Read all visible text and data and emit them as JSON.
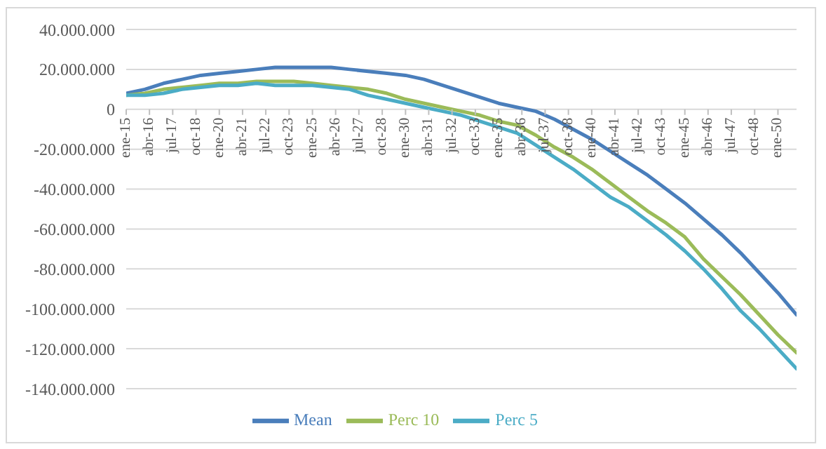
{
  "chart_data": {
    "type": "line",
    "x": [
      "2015-01",
      "2016-01",
      "2017-01",
      "2018-01",
      "2019-01",
      "2020-01",
      "2021-01",
      "2022-01",
      "2023-01",
      "2024-01",
      "2025-01",
      "2026-01",
      "2027-01",
      "2028-01",
      "2029-01",
      "2030-01",
      "2031-01",
      "2032-01",
      "2033-01",
      "2034-01",
      "2035-01",
      "2036-01",
      "2037-01",
      "2038-01",
      "2039-01",
      "2040-01",
      "2041-01",
      "2042-01",
      "2043-01",
      "2044-01",
      "2045-01",
      "2046-01",
      "2047-01",
      "2048-01",
      "2049-01",
      "2050-01",
      "2051-01"
    ],
    "series": [
      {
        "name": "Mean",
        "color": "#4a7ebb",
        "values": [
          8000000,
          10000000,
          13000000,
          15000000,
          17000000,
          18000000,
          19000000,
          20000000,
          21000000,
          21000000,
          21000000,
          21000000,
          20000000,
          19000000,
          18000000,
          17000000,
          15000000,
          12000000,
          9000000,
          6000000,
          3000000,
          1000000,
          -1000000,
          -5000000,
          -10000000,
          -15000000,
          -21000000,
          -27000000,
          -33000000,
          -40000000,
          -47000000,
          -55000000,
          -63000000,
          -72000000,
          -82000000,
          -92000000,
          -103000000
        ]
      },
      {
        "name": "Perc 10",
        "color": "#9bbb59",
        "values": [
          7000000,
          8000000,
          10000000,
          11000000,
          12000000,
          13000000,
          13000000,
          14000000,
          14000000,
          14000000,
          13000000,
          12000000,
          11000000,
          10000000,
          8000000,
          5000000,
          3000000,
          1000000,
          -1000000,
          -3000000,
          -6000000,
          -8000000,
          -13000000,
          -19000000,
          -24000000,
          -30000000,
          -37000000,
          -44000000,
          -51000000,
          -57000000,
          -64000000,
          -75000000,
          -84000000,
          -93000000,
          -103000000,
          -113000000,
          -122000000
        ]
      },
      {
        "name": "Perc 5",
        "color": "#4bacc6",
        "values": [
          7000000,
          7000000,
          8000000,
          10000000,
          11000000,
          12000000,
          12000000,
          13000000,
          12000000,
          12000000,
          12000000,
          11000000,
          10000000,
          7000000,
          5000000,
          3000000,
          1000000,
          -1000000,
          -3000000,
          -6000000,
          -9000000,
          -12000000,
          -18000000,
          -24000000,
          -30000000,
          -37000000,
          -44000000,
          -49000000,
          -56000000,
          -63000000,
          -71000000,
          -80000000,
          -90000000,
          -101000000,
          -110000000,
          -120000000,
          -130000000
        ]
      }
    ],
    "xlim": [
      "2015-01",
      "2051-01"
    ],
    "xticks": [
      {
        "value": "2015-01",
        "label": "ene-15"
      },
      {
        "value": "2016-04",
        "label": "abr-16"
      },
      {
        "value": "2017-07",
        "label": "jul-17"
      },
      {
        "value": "2018-10",
        "label": "oct-18"
      },
      {
        "value": "2020-01",
        "label": "ene-20"
      },
      {
        "value": "2021-04",
        "label": "abr-21"
      },
      {
        "value": "2022-07",
        "label": "jul-22"
      },
      {
        "value": "2023-10",
        "label": "oct-23"
      },
      {
        "value": "2025-01",
        "label": "ene-25"
      },
      {
        "value": "2026-04",
        "label": "abr-26"
      },
      {
        "value": "2027-07",
        "label": "jul-27"
      },
      {
        "value": "2028-10",
        "label": "oct-28"
      },
      {
        "value": "2030-01",
        "label": "ene-30"
      },
      {
        "value": "2031-04",
        "label": "abr-31"
      },
      {
        "value": "2032-07",
        "label": "jul-32"
      },
      {
        "value": "2033-10",
        "label": "oct-33"
      },
      {
        "value": "2035-01",
        "label": "ene-35"
      },
      {
        "value": "2036-04",
        "label": "abr-36"
      },
      {
        "value": "2037-07",
        "label": "jul-37"
      },
      {
        "value": "2038-10",
        "label": "oct-38"
      },
      {
        "value": "2040-01",
        "label": "ene-40"
      },
      {
        "value": "2041-04",
        "label": "abr-41"
      },
      {
        "value": "2042-07",
        "label": "jul-42"
      },
      {
        "value": "2043-10",
        "label": "oct-43"
      },
      {
        "value": "2045-01",
        "label": "ene-45"
      },
      {
        "value": "2046-04",
        "label": "abr-46"
      },
      {
        "value": "2047-07",
        "label": "jul-47"
      },
      {
        "value": "2048-10",
        "label": "oct-48"
      },
      {
        "value": "2050-01",
        "label": "ene-50"
      }
    ],
    "ylim": [
      -140000000,
      40000000
    ],
    "yticks": [
      {
        "value": -140000000,
        "label": "-140.000.000"
      },
      {
        "value": -120000000,
        "label": "-120.000.000"
      },
      {
        "value": -100000000,
        "label": "-100.000.000"
      },
      {
        "value": -80000000,
        "label": "-80.000.000"
      },
      {
        "value": -60000000,
        "label": "-60.000.000"
      },
      {
        "value": -40000000,
        "label": "-40.000.000"
      },
      {
        "value": -20000000,
        "label": "-20.000.000"
      },
      0,
      {
        "value": 20000000,
        "label": "20.000.000"
      },
      {
        "value": 40000000,
        "label": "40.000.000"
      }
    ],
    "grid": "y",
    "legend": "bottom",
    "marker": "none",
    "line_style": "solid"
  }
}
